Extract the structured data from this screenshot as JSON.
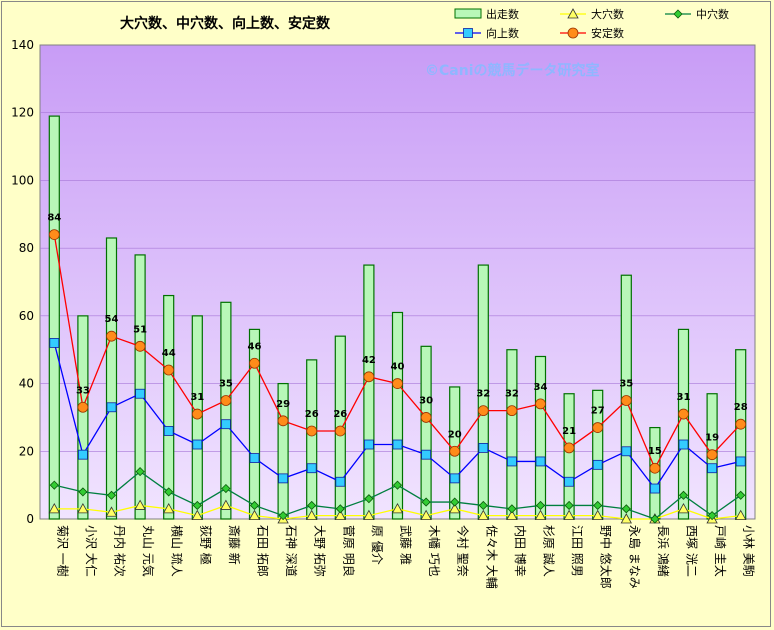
{
  "colors": {
    "background": "#ffffc8",
    "plot_top": "#c89cf6",
    "plot_bottom": "#f1e4ff",
    "bar_fill": "#b8f7b8",
    "bar_stroke": "#007000",
    "ooana": "#ffff00",
    "chuana": "#007f3f",
    "koujou": "#0000ff",
    "antei": "#ff0000"
  },
  "watermark": "©Caniの競馬データ研究室",
  "chart_data": {
    "type": "bar+line",
    "title": "大穴数、中穴数、向上数、安定数",
    "ylim": [
      0,
      140
    ],
    "yticks": [
      0,
      20,
      40,
      60,
      80,
      100,
      120,
      140
    ],
    "categories": [
      "菊沢 一樹",
      "小沢 大仁",
      "丹内 祐次",
      "丸山 元気",
      "横山 琉人",
      "荻野 極",
      "斎藤 新",
      "石田 拓郎",
      "石神 深道",
      "大野 拓弥",
      "菅原 明良",
      "原 優介",
      "武藤 雅",
      "木幡 巧也",
      "今村 聖奈",
      "佐々木 大輔",
      "内田 博幸",
      "杉原 誠人",
      "江田 照男",
      "野中 悠太郎",
      "永島 まなみ",
      "長浜 鴻緒",
      "西塚 洸二",
      "戸崎 圭太",
      "小林 美駒"
    ],
    "series": [
      {
        "name": "出走数",
        "kind": "bar",
        "values": [
          119,
          60,
          83,
          78,
          66,
          60,
          64,
          56,
          40,
          47,
          54,
          75,
          61,
          51,
          39,
          75,
          50,
          48,
          37,
          38,
          72,
          27,
          56,
          37,
          50
        ]
      },
      {
        "name": "大穴数",
        "kind": "line",
        "marker": "triangle",
        "values": [
          3,
          3,
          2,
          4,
          3,
          1,
          4,
          1,
          0,
          1,
          1,
          1,
          3,
          1,
          3,
          1,
          1,
          1,
          1,
          1,
          0,
          0,
          3,
          0,
          1
        ]
      },
      {
        "name": "中穴数",
        "kind": "line",
        "marker": "diamond",
        "values": [
          10,
          8,
          7,
          14,
          8,
          4,
          9,
          4,
          1,
          4,
          3,
          6,
          10,
          5,
          5,
          4,
          3,
          4,
          4,
          4,
          3,
          0,
          7,
          1,
          7
        ]
      },
      {
        "name": "向上数",
        "kind": "line",
        "marker": "square",
        "values": [
          52,
          19,
          33,
          37,
          26,
          22,
          28,
          18,
          12,
          15,
          11,
          22,
          22,
          19,
          12,
          21,
          17,
          17,
          11,
          16,
          20,
          9,
          22,
          15,
          17
        ]
      },
      {
        "name": "安定数",
        "kind": "line",
        "marker": "circle",
        "labeled": true,
        "values": [
          84,
          33,
          54,
          51,
          44,
          31,
          35,
          46,
          29,
          26,
          26,
          42,
          40,
          30,
          20,
          32,
          32,
          34,
          21,
          27,
          35,
          15,
          31,
          19,
          28
        ]
      }
    ]
  }
}
